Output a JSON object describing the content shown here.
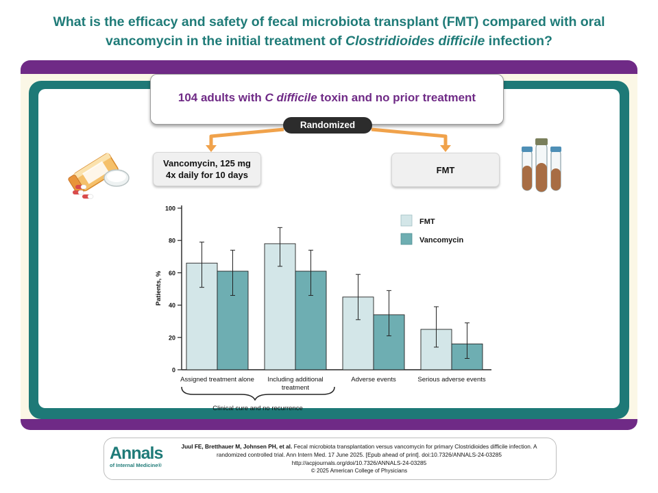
{
  "title": {
    "line1": "What is the efficacy and safety of fecal microbiota transplant (FMT) compared with oral",
    "line2_prefix": "vancomycin in the initial treatment of ",
    "line2_italic": "Clostridioides difficile",
    "line2_suffix": " infection?"
  },
  "population": {
    "prefix": "104 adults with ",
    "italic": "C difficile",
    "suffix": " toxin and no prior treatment"
  },
  "randomized_label": "Randomized",
  "arms": {
    "vancomycin_line1": "Vancomycin, 125 mg",
    "vancomycin_line2": "4x daily for 10 days",
    "fmt": "FMT"
  },
  "chart_data": {
    "type": "bar",
    "ylabel": "Patients, %",
    "ylim": [
      0,
      100
    ],
    "yticks": [
      "0",
      "20",
      "40",
      "60",
      "80",
      "100"
    ],
    "categories": [
      "Assigned treatment alone",
      "Including additional treatment",
      "Adverse events",
      "Serious adverse events"
    ],
    "category_labels": [
      [
        "Assigned treatment alone"
      ],
      [
        "Including additional",
        "treatment"
      ],
      [
        "Adverse events"
      ],
      [
        "Serious adverse events"
      ]
    ],
    "series": [
      {
        "name": "FMT",
        "color": "#d3e6e8",
        "values": [
          66,
          78,
          45,
          25
        ],
        "err_low": [
          51,
          64,
          31,
          14
        ],
        "err_high": [
          79,
          88,
          59,
          39
        ]
      },
      {
        "name": "Vancomycin",
        "color": "#6eaeb2",
        "values": [
          61,
          61,
          34,
          16
        ],
        "err_low": [
          46,
          46,
          21,
          7
        ],
        "err_high": [
          74,
          74,
          49,
          29
        ]
      }
    ],
    "group_annotation": "Clinical cure and no recurrence",
    "legend_position": "top-right"
  },
  "citation": {
    "authors": "Juul FE, Bretthauer M, Johnsen PH, et al.",
    "line1_rest": " Fecal microbiota transplantation versus vancomycin for primary Clostridioides difficile infection. A",
    "line2": "randomized controlled trial. Ann Intern Med. 17 June 2025. [Epub ahead of print]. doi:10.7326/ANNALS-24-03285",
    "line3": "http://acpjournals.org/doi/10.7326/ANNALS-24-03285",
    "copyright": "© 2025 American College of Physicians"
  },
  "logo": {
    "big": "Annals",
    "small": "of Internal Medicine®"
  },
  "colors": {
    "teal": "#1f7b78",
    "purple": "#6f2a86",
    "orange": "#f0a24b"
  }
}
